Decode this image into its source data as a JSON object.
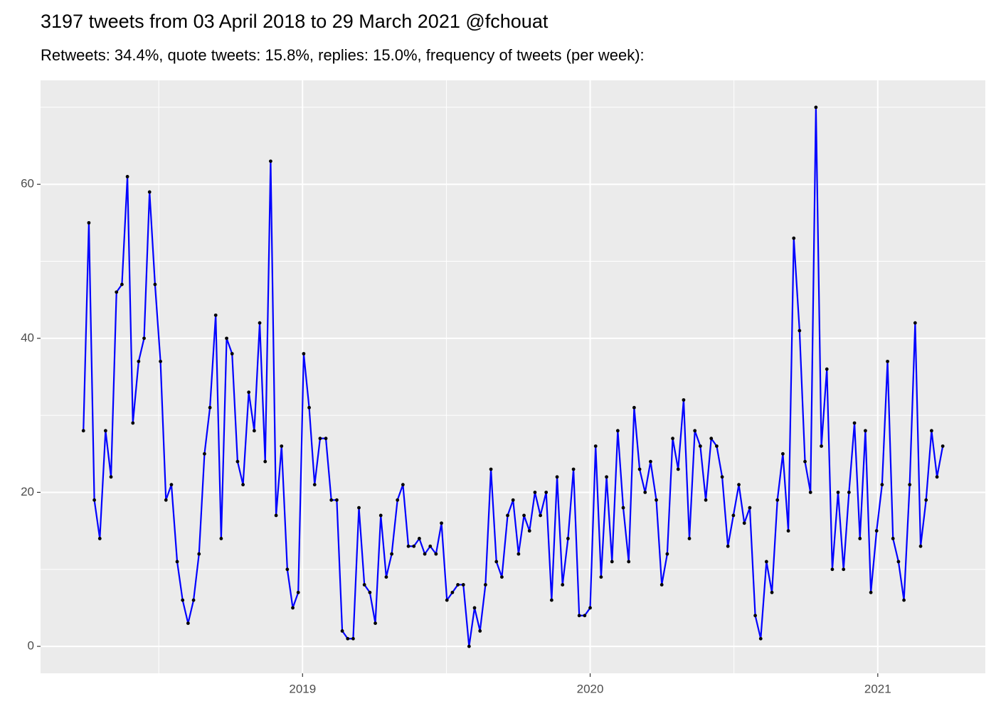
{
  "chart_data": {
    "type": "line",
    "title": "3197 tweets from 03 April 2018 to 29 March 2021 @fchouat",
    "subtitle": "Retweets: 34.4%, quote tweets: 15.8%, replies: 15.0%, frequency of tweets (per week):",
    "x": [
      2018.238,
      2018.257,
      2018.276,
      2018.295,
      2018.315,
      2018.334,
      2018.353,
      2018.372,
      2018.391,
      2018.41,
      2018.43,
      2018.449,
      2018.468,
      2018.487,
      2018.506,
      2018.525,
      2018.544,
      2018.564,
      2018.583,
      2018.602,
      2018.621,
      2018.64,
      2018.659,
      2018.678,
      2018.698,
      2018.717,
      2018.736,
      2018.755,
      2018.774,
      2018.793,
      2018.813,
      2018.832,
      2018.851,
      2018.87,
      2018.889,
      2018.908,
      2018.927,
      2018.947,
      2018.966,
      2018.985,
      2019.004,
      2019.023,
      2019.042,
      2019.061,
      2019.081,
      2019.1,
      2019.119,
      2019.138,
      2019.157,
      2019.176,
      2019.196,
      2019.215,
      2019.234,
      2019.253,
      2019.272,
      2019.291,
      2019.31,
      2019.33,
      2019.349,
      2019.368,
      2019.387,
      2019.406,
      2019.425,
      2019.444,
      2019.464,
      2019.483,
      2019.502,
      2019.521,
      2019.54,
      2019.559,
      2019.579,
      2019.598,
      2019.617,
      2019.636,
      2019.655,
      2019.674,
      2019.693,
      2019.713,
      2019.732,
      2019.751,
      2019.77,
      2019.789,
      2019.808,
      2019.827,
      2019.847,
      2019.866,
      2019.885,
      2019.904,
      2019.923,
      2019.942,
      2019.962,
      2019.981,
      2020.0,
      2020.019,
      2020.038,
      2020.057,
      2020.076,
      2020.096,
      2020.115,
      2020.134,
      2020.153,
      2020.172,
      2020.191,
      2020.21,
      2020.23,
      2020.249,
      2020.268,
      2020.287,
      2020.306,
      2020.325,
      2020.345,
      2020.364,
      2020.383,
      2020.402,
      2020.421,
      2020.44,
      2020.459,
      2020.479,
      2020.498,
      2020.517,
      2020.536,
      2020.555,
      2020.574,
      2020.593,
      2020.613,
      2020.632,
      2020.651,
      2020.67,
      2020.689,
      2020.708,
      2020.728,
      2020.747,
      2020.766,
      2020.785,
      2020.804,
      2020.823,
      2020.842,
      2020.862,
      2020.881,
      2020.9,
      2020.919,
      2020.938,
      2020.957,
      2020.976,
      2020.996,
      2021.015,
      2021.034,
      2021.053,
      2021.072,
      2021.091,
      2021.111,
      2021.13,
      2021.149,
      2021.168,
      2021.187,
      2021.206,
      2021.226
    ],
    "series": [
      {
        "color": "#0000ff",
        "point_color": "#000000",
        "values": [
          28,
          55,
          19,
          14,
          28,
          22,
          46,
          47,
          61,
          29,
          37,
          40,
          59,
          47,
          37,
          19,
          21,
          11,
          6,
          3,
          6,
          12,
          25,
          31,
          43,
          14,
          40,
          38,
          24,
          21,
          33,
          28,
          42,
          24,
          63,
          17,
          26,
          10,
          5,
          7,
          38,
          31,
          21,
          27,
          27,
          19,
          19,
          2,
          1,
          1,
          18,
          8,
          7,
          3,
          17,
          9,
          12,
          19,
          21,
          13,
          13,
          14,
          12,
          13,
          12,
          16,
          6,
          7,
          8,
          8,
          0,
          5,
          2,
          8,
          23,
          11,
          9,
          17,
          19,
          12,
          17,
          15,
          20,
          17,
          20,
          6,
          22,
          8,
          14,
          23,
          4,
          4,
          5,
          26,
          9,
          22,
          11,
          28,
          18,
          11,
          31,
          23,
          20,
          24,
          19,
          8,
          12,
          27,
          23,
          32,
          14,
          28,
          26,
          19,
          27,
          26,
          22,
          13,
          17,
          21,
          16,
          18,
          4,
          1,
          11,
          7,
          19,
          25,
          15,
          53,
          41,
          24,
          20,
          70,
          26,
          36,
          10,
          20,
          10,
          20,
          29,
          14,
          28,
          7,
          15,
          21,
          37,
          14,
          11,
          6,
          21,
          42,
          13,
          19,
          28,
          22,
          26
        ]
      }
    ],
    "xlim": [
      2018.089,
      2021.374
    ],
    "xticks": [
      2019,
      2020,
      2021
    ],
    "xminor": [
      2018.5,
      2019.5,
      2020.5
    ],
    "ylim": [
      -3.5,
      73.5
    ],
    "yticks": [
      0,
      20,
      40,
      60
    ],
    "yminor": [
      10,
      30,
      50,
      70
    ],
    "grid": true
  }
}
